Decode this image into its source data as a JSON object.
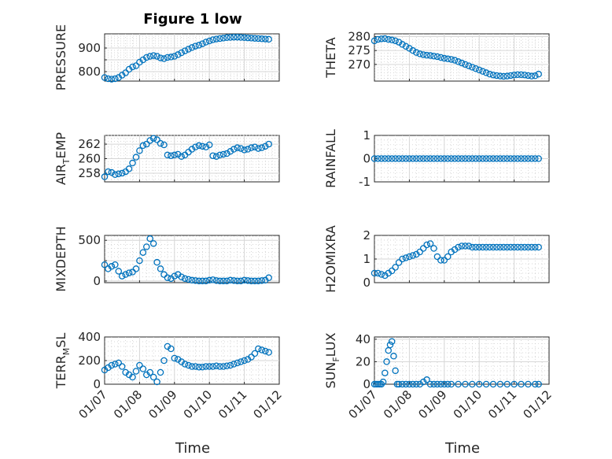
{
  "figure": {
    "title": "Figure 1 low",
    "x_ticks": [
      "01/07",
      "01/08",
      "01/09",
      "01/10",
      "01/11",
      "01/12"
    ],
    "x_label": "Time",
    "marker_color": "#0072BD"
  },
  "chart_data": [
    {
      "type": "scatter",
      "title": "Figure 1 low",
      "ylabel": "PRESSURE",
      "ylabel_sub": "",
      "ylabel_tail": "",
      "xlim": [
        0,
        5
      ],
      "ylim": [
        760,
        960
      ],
      "yticks": [
        800,
        850,
        900
      ],
      "yticklabels": [
        "800",
        "",
        "900"
      ],
      "x": [
        0.0,
        0.1,
        0.2,
        0.3,
        0.4,
        0.5,
        0.6,
        0.7,
        0.8,
        0.9,
        1.0,
        1.1,
        1.2,
        1.3,
        1.4,
        1.5,
        1.6,
        1.7,
        1.8,
        1.9,
        2.0,
        2.1,
        2.2,
        2.3,
        2.4,
        2.5,
        2.6,
        2.7,
        2.8,
        2.9,
        3.0,
        3.1,
        3.2,
        3.3,
        3.4,
        3.5,
        3.6,
        3.7,
        3.8,
        3.9,
        4.0,
        4.1,
        4.2,
        4.3,
        4.4,
        4.5,
        4.6,
        4.7
      ],
      "y": [
        775,
        770,
        768,
        770,
        775,
        785,
        795,
        810,
        820,
        825,
        840,
        850,
        860,
        865,
        868,
        865,
        858,
        855,
        860,
        862,
        865,
        872,
        880,
        888,
        895,
        902,
        908,
        912,
        918,
        925,
        930,
        935,
        938,
        940,
        942,
        944,
        945,
        946,
        946,
        945,
        944,
        943,
        942,
        941,
        940,
        939,
        938,
        937
      ]
    },
    {
      "type": "scatter",
      "title": "",
      "ylabel": "THETA",
      "ylabel_sub": "",
      "ylabel_tail": "",
      "xlim": [
        0,
        5
      ],
      "ylim": [
        264,
        281
      ],
      "yticks": [
        270,
        275,
        280
      ],
      "yticklabels": [
        "270",
        "275",
        "280"
      ],
      "x": [
        0.0,
        0.1,
        0.2,
        0.3,
        0.4,
        0.5,
        0.6,
        0.7,
        0.8,
        0.9,
        1.0,
        1.1,
        1.2,
        1.3,
        1.4,
        1.5,
        1.6,
        1.7,
        1.8,
        1.9,
        2.0,
        2.1,
        2.2,
        2.3,
        2.4,
        2.5,
        2.6,
        2.7,
        2.8,
        2.9,
        3.0,
        3.1,
        3.2,
        3.3,
        3.4,
        3.5,
        3.6,
        3.7,
        3.8,
        3.9,
        4.0,
        4.1,
        4.2,
        4.3,
        4.4,
        4.5,
        4.6,
        4.7
      ],
      "y": [
        278.5,
        279,
        279.2,
        279.3,
        279,
        278.8,
        278.5,
        278,
        277.2,
        276.5,
        275.8,
        275,
        274.3,
        273.8,
        273.5,
        273.3,
        273.2,
        273,
        272.8,
        272.5,
        272.2,
        272,
        271.8,
        271.5,
        271,
        270.5,
        270,
        269.5,
        269,
        268.5,
        268,
        267.5,
        267,
        266.5,
        266.2,
        266,
        265.8,
        265.7,
        265.8,
        266,
        266.2,
        266.3,
        266.3,
        266.2,
        266,
        265.8,
        265.9,
        266.5
      ]
    },
    {
      "type": "scatter",
      "title": "",
      "ylabel": "AIR",
      "ylabel_sub": "T",
      "ylabel_tail": "EMP",
      "xlim": [
        0,
        5
      ],
      "ylim": [
        256.8,
        263.2
      ],
      "yticks": [
        258,
        260,
        262
      ],
      "yticklabels": [
        "258",
        "260",
        "262"
      ],
      "x": [
        0.0,
        0.1,
        0.2,
        0.3,
        0.4,
        0.5,
        0.6,
        0.7,
        0.8,
        0.9,
        1.0,
        1.1,
        1.2,
        1.3,
        1.4,
        1.5,
        1.6,
        1.7,
        1.8,
        1.9,
        2.0,
        2.1,
        2.2,
        2.3,
        2.4,
        2.5,
        2.6,
        2.7,
        2.8,
        2.9,
        3.0,
        3.1,
        3.2,
        3.3,
        3.4,
        3.5,
        3.6,
        3.7,
        3.8,
        3.9,
        4.0,
        4.1,
        4.2,
        4.3,
        4.4,
        4.5,
        4.6,
        4.7
      ],
      "y": [
        257.5,
        258.2,
        258.1,
        257.8,
        257.9,
        258,
        258.2,
        258.6,
        259.4,
        260.2,
        261.1,
        261.8,
        262,
        262.5,
        262.8,
        262.6,
        262.1,
        261.9,
        260.5,
        260.4,
        260.5,
        260.6,
        260.3,
        260.5,
        260.9,
        261.3,
        261.6,
        261.8,
        261.7,
        261.6,
        261.9,
        260.4,
        260.3,
        260.5,
        260.6,
        260.7,
        261,
        261.3,
        261.5,
        261.4,
        261.2,
        261.3,
        261.5,
        261.6,
        261.4,
        261.5,
        261.7,
        262
      ]
    },
    {
      "type": "scatter",
      "title": "",
      "ylabel": "RAINFALL",
      "ylabel_sub": "",
      "ylabel_tail": "",
      "xlim": [
        0,
        5
      ],
      "ylim": [
        -1,
        1
      ],
      "yticks": [
        -1,
        0,
        1
      ],
      "yticklabels": [
        "-1",
        "0",
        "1"
      ],
      "x": [
        0.0,
        0.1,
        0.2,
        0.3,
        0.4,
        0.5,
        0.6,
        0.7,
        0.8,
        0.9,
        1.0,
        1.1,
        1.2,
        1.3,
        1.4,
        1.5,
        1.6,
        1.7,
        1.8,
        1.9,
        2.0,
        2.1,
        2.2,
        2.3,
        2.4,
        2.5,
        2.6,
        2.7,
        2.8,
        2.9,
        3.0,
        3.1,
        3.2,
        3.3,
        3.4,
        3.5,
        3.6,
        3.7,
        3.8,
        3.9,
        4.0,
        4.1,
        4.2,
        4.3,
        4.4,
        4.5,
        4.6,
        4.7
      ],
      "y": [
        0,
        0,
        0,
        0,
        0,
        0,
        0,
        0,
        0,
        0,
        0,
        0,
        0,
        0,
        0,
        0,
        0,
        0,
        0,
        0,
        0,
        0,
        0,
        0,
        0,
        0,
        0,
        0,
        0,
        0,
        0,
        0,
        0,
        0,
        0,
        0,
        0,
        0,
        0,
        0,
        0,
        0,
        0,
        0,
        0,
        0,
        0,
        0
      ]
    },
    {
      "type": "scatter",
      "title": "",
      "ylabel": "MIXDEPTH",
      "ylabel_sub": "",
      "ylabel_tail": "",
      "xlim": [
        0,
        5
      ],
      "ylim": [
        -20,
        560
      ],
      "yticks": [
        0,
        250,
        500
      ],
      "yticklabels": [
        "0",
        "",
        "500"
      ],
      "x": [
        0.0,
        0.1,
        0.2,
        0.3,
        0.4,
        0.5,
        0.6,
        0.7,
        0.8,
        0.9,
        1.0,
        1.1,
        1.2,
        1.3,
        1.4,
        1.5,
        1.6,
        1.7,
        1.8,
        1.9,
        2.0,
        2.1,
        2.2,
        2.3,
        2.4,
        2.5,
        2.6,
        2.7,
        2.8,
        2.9,
        3.0,
        3.1,
        3.2,
        3.3,
        3.4,
        3.5,
        3.6,
        3.7,
        3.8,
        3.9,
        4.0,
        4.1,
        4.2,
        4.3,
        4.4,
        4.5,
        4.6,
        4.7
      ],
      "y": [
        200,
        150,
        180,
        200,
        120,
        60,
        80,
        100,
        110,
        150,
        250,
        350,
        420,
        520,
        460,
        230,
        150,
        80,
        40,
        30,
        60,
        80,
        50,
        30,
        20,
        10,
        5,
        0,
        0,
        0,
        10,
        15,
        5,
        0,
        0,
        0,
        10,
        5,
        0,
        0,
        10,
        5,
        0,
        0,
        0,
        5,
        10,
        40
      ]
    },
    {
      "type": "scatter",
      "title": "",
      "ylabel": "H2OMIXRA",
      "ylabel_sub": "",
      "ylabel_tail": "",
      "xlim": [
        0,
        5
      ],
      "ylim": [
        0,
        2
      ],
      "yticks": [
        0,
        1,
        2
      ],
      "yticklabels": [
        "0",
        "1",
        "2"
      ],
      "x": [
        0.0,
        0.1,
        0.2,
        0.3,
        0.4,
        0.5,
        0.6,
        0.7,
        0.8,
        0.9,
        1.0,
        1.1,
        1.2,
        1.3,
        1.4,
        1.5,
        1.6,
        1.7,
        1.8,
        1.9,
        2.0,
        2.1,
        2.2,
        2.3,
        2.4,
        2.5,
        2.6,
        2.7,
        2.8,
        2.9,
        3.0,
        3.1,
        3.2,
        3.3,
        3.4,
        3.5,
        3.6,
        3.7,
        3.8,
        3.9,
        4.0,
        4.1,
        4.2,
        4.3,
        4.4,
        4.5,
        4.6,
        4.7
      ],
      "y": [
        0.4,
        0.4,
        0.35,
        0.3,
        0.4,
        0.5,
        0.65,
        0.85,
        1.0,
        1.05,
        1.1,
        1.15,
        1.2,
        1.3,
        1.45,
        1.6,
        1.65,
        1.45,
        1.1,
        0.95,
        0.95,
        1.1,
        1.3,
        1.4,
        1.5,
        1.55,
        1.55,
        1.55,
        1.5,
        1.5,
        1.5,
        1.5,
        1.5,
        1.5,
        1.5,
        1.5,
        1.5,
        1.5,
        1.5,
        1.5,
        1.5,
        1.5,
        1.5,
        1.5,
        1.5,
        1.5,
        1.5,
        1.5
      ]
    },
    {
      "type": "scatter",
      "title": "",
      "ylabel": "TERR",
      "ylabel_sub": "M",
      "ylabel_tail": "SL",
      "xlim": [
        0,
        5
      ],
      "ylim": [
        0,
        400
      ],
      "yticks": [
        0,
        200,
        400
      ],
      "yticklabels": [
        "0",
        "200",
        "400"
      ],
      "x": [
        0.0,
        0.1,
        0.2,
        0.3,
        0.4,
        0.5,
        0.6,
        0.7,
        0.8,
        0.9,
        1.0,
        1.1,
        1.2,
        1.3,
        1.4,
        1.5,
        1.6,
        1.7,
        1.8,
        1.9,
        2.0,
        2.1,
        2.2,
        2.3,
        2.4,
        2.5,
        2.6,
        2.7,
        2.8,
        2.9,
        3.0,
        3.1,
        3.2,
        3.3,
        3.4,
        3.5,
        3.6,
        3.7,
        3.8,
        3.9,
        4.0,
        4.1,
        4.2,
        4.3,
        4.4,
        4.5,
        4.6,
        4.7
      ],
      "y": [
        120,
        140,
        160,
        170,
        180,
        150,
        100,
        80,
        60,
        110,
        160,
        130,
        80,
        100,
        60,
        20,
        100,
        200,
        320,
        300,
        220,
        210,
        190,
        170,
        160,
        150,
        150,
        145,
        145,
        150,
        150,
        150,
        155,
        150,
        150,
        155,
        160,
        170,
        180,
        190,
        200,
        210,
        230,
        260,
        300,
        290,
        280,
        270
      ]
    },
    {
      "type": "scatter",
      "title": "",
      "ylabel": "SUN",
      "ylabel_sub": "F",
      "ylabel_tail": "LUX",
      "xlim": [
        0,
        5
      ],
      "ylim": [
        0,
        42
      ],
      "yticks": [
        0,
        20,
        40
      ],
      "yticklabels": [
        "0",
        "20",
        "40"
      ],
      "x": [
        0.0,
        0.05,
        0.1,
        0.15,
        0.2,
        0.25,
        0.3,
        0.35,
        0.4,
        0.45,
        0.5,
        0.55,
        0.6,
        0.65,
        0.7,
        0.8,
        0.9,
        1.0,
        1.1,
        1.2,
        1.3,
        1.4,
        1.5,
        1.6,
        1.7,
        1.8,
        1.9,
        2.0,
        2.1,
        2.2,
        2.4,
        2.6,
        2.8,
        3.0,
        3.2,
        3.4,
        3.6,
        3.8,
        4.0,
        4.2,
        4.4,
        4.6,
        4.7
      ],
      "y": [
        0,
        0,
        0,
        0,
        0,
        2,
        10,
        20,
        30,
        35,
        38,
        25,
        12,
        0,
        0,
        0,
        0,
        0,
        0,
        0,
        0,
        2,
        4,
        0,
        0,
        0,
        0,
        0,
        0,
        0,
        0,
        0,
        0,
        0,
        0,
        0,
        0,
        0,
        0,
        0,
        0,
        0,
        0
      ]
    }
  ]
}
